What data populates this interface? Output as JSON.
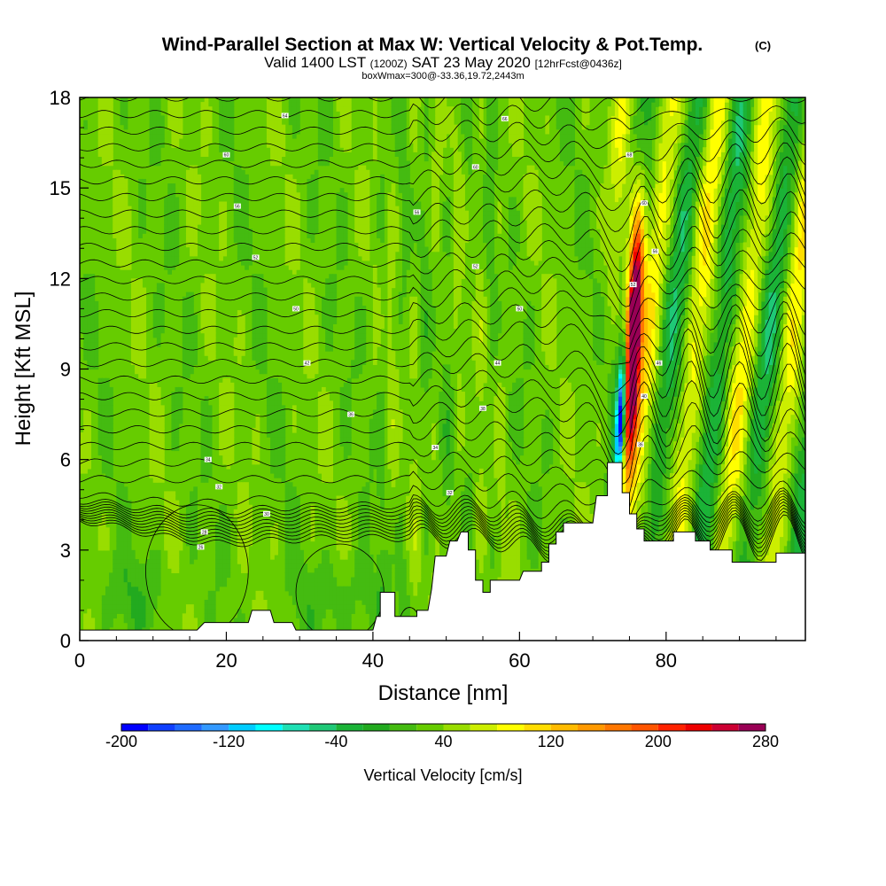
{
  "chart_data": {
    "type": "heatmap",
    "title": "Wind-Parallel Section at Max W: Vertical Velocity & Pot.Temp.",
    "title_mark": "(C)",
    "subtitle": {
      "prefix": "Valid 1400 LST",
      "zulu": "(1200Z)",
      "date": "SAT 23 May 2020",
      "forecast": "[12hrFcst@0436z]"
    },
    "box_label": "boxWmax=300@-33.36,19.72,2443m",
    "xlabel": "Distance [nm]",
    "ylabel": "Height [Kft MSL]",
    "xlim": [
      0,
      99
    ],
    "ylim": [
      0,
      18
    ],
    "x_ticks": [
      "0",
      "20",
      "40",
      "60",
      "80"
    ],
    "x_tick_values": [
      0,
      20,
      40,
      60,
      80
    ],
    "y_ticks": [
      "0",
      "3",
      "6",
      "9",
      "12",
      "15",
      "18"
    ],
    "y_tick_values": [
      0,
      3,
      6,
      9,
      12,
      15,
      18
    ],
    "colorbar": {
      "label": "Vertical Velocity [cm/s]",
      "min": -200,
      "max": 280,
      "step": 20,
      "tick_labels": [
        "-200",
        "-120",
        "-40",
        "40",
        "120",
        "200",
        "280"
      ],
      "tick_values": [
        -200,
        -120,
        -40,
        40,
        120,
        200,
        280
      ],
      "colors": [
        "#0000ff",
        "#0f3fff",
        "#1f6bff",
        "#3399ff",
        "#00ccff",
        "#00ffff",
        "#1fe0b4",
        "#1fc877",
        "#1bb337",
        "#22aa1f",
        "#44bb11",
        "#66cc00",
        "#99dd00",
        "#ccee00",
        "#ffff00",
        "#ffdd00",
        "#ffbb00",
        "#ff9900",
        "#ff7700",
        "#ff5500",
        "#ff2200",
        "#ee0000",
        "#cc0033",
        "#990055"
      ]
    },
    "terrain_kft": [
      [
        0,
        0.35
      ],
      [
        16,
        0.35
      ],
      [
        17,
        0.6
      ],
      [
        23,
        0.6
      ],
      [
        23.5,
        1.0
      ],
      [
        26,
        1.0
      ],
      [
        26.5,
        0.6
      ],
      [
        29,
        0.6
      ],
      [
        29.5,
        0.35
      ],
      [
        40,
        0.35
      ],
      [
        40.5,
        0.8
      ],
      [
        41,
        0.8
      ],
      [
        41,
        1.6
      ],
      [
        43,
        1.6
      ],
      [
        43,
        0.8
      ],
      [
        46,
        0.8
      ],
      [
        46,
        1.0
      ],
      [
        47.5,
        1.0
      ],
      [
        48,
        1.7
      ],
      [
        48.5,
        2.8
      ],
      [
        50,
        2.8
      ],
      [
        50.5,
        3.3
      ],
      [
        51.5,
        3.3
      ],
      [
        52,
        3.6
      ],
      [
        53,
        3.6
      ],
      [
        53,
        3.0
      ],
      [
        54,
        3.0
      ],
      [
        54,
        2.0
      ],
      [
        55,
        2.0
      ],
      [
        55,
        1.6
      ],
      [
        56,
        1.6
      ],
      [
        56,
        2.0
      ],
      [
        60,
        2.0
      ],
      [
        60.5,
        2.3
      ],
      [
        63,
        2.3
      ],
      [
        63,
        2.6
      ],
      [
        64,
        2.6
      ],
      [
        64,
        3.2
      ],
      [
        65,
        3.2
      ],
      [
        65,
        3.6
      ],
      [
        66,
        3.6
      ],
      [
        66,
        3.9
      ],
      [
        70,
        3.9
      ],
      [
        70.5,
        4.8
      ],
      [
        72,
        4.8
      ],
      [
        72,
        5.9
      ],
      [
        74,
        5.9
      ],
      [
        74,
        4.9
      ],
      [
        75,
        4.9
      ],
      [
        75,
        4.2
      ],
      [
        76,
        4.2
      ],
      [
        76,
        3.7
      ],
      [
        77,
        3.7
      ],
      [
        77,
        3.3
      ],
      [
        81,
        3.3
      ],
      [
        81,
        3.6
      ],
      [
        84,
        3.6
      ],
      [
        84,
        3.3
      ],
      [
        86,
        3.3
      ],
      [
        86,
        3.0
      ],
      [
        89,
        3.0
      ],
      [
        89,
        2.6
      ],
      [
        95,
        2.6
      ],
      [
        95,
        2.9
      ],
      [
        99,
        2.9
      ]
    ],
    "theta_labels": [
      {
        "text": "64",
        "x": 28,
        "y": 17.4
      },
      {
        "text": "60",
        "x": 20,
        "y": 16.1
      },
      {
        "text": "56",
        "x": 21.5,
        "y": 14.4
      },
      {
        "text": "52",
        "x": 24,
        "y": 12.7
      },
      {
        "text": "50",
        "x": 29.5,
        "y": 11.0
      },
      {
        "text": "42",
        "x": 31,
        "y": 9.2
      },
      {
        "text": "36",
        "x": 37,
        "y": 7.5
      },
      {
        "text": "34",
        "x": 17.5,
        "y": 6.0
      },
      {
        "text": "32",
        "x": 19,
        "y": 5.1
      },
      {
        "text": "30",
        "x": 25.5,
        "y": 4.2
      },
      {
        "text": "28",
        "x": 17,
        "y": 3.6
      },
      {
        "text": "26",
        "x": 16.5,
        "y": 3.1
      },
      {
        "text": "66",
        "x": 58,
        "y": 17.3
      },
      {
        "text": "60",
        "x": 54,
        "y": 15.7
      },
      {
        "text": "56",
        "x": 46,
        "y": 14.2
      },
      {
        "text": "52",
        "x": 54,
        "y": 12.4
      },
      {
        "text": "50",
        "x": 60,
        "y": 11.0
      },
      {
        "text": "44",
        "x": 57,
        "y": 9.2
      },
      {
        "text": "38",
        "x": 55,
        "y": 7.7
      },
      {
        "text": "34",
        "x": 48.5,
        "y": 6.4
      },
      {
        "text": "32",
        "x": 50.5,
        "y": 4.9
      },
      {
        "text": "68",
        "x": 75,
        "y": 16.1
      },
      {
        "text": "60",
        "x": 77,
        "y": 14.5
      },
      {
        "text": "56",
        "x": 78.5,
        "y": 12.9
      },
      {
        "text": "52",
        "x": 75.5,
        "y": 11.8
      },
      {
        "text": "46",
        "x": 79,
        "y": 9.2
      },
      {
        "text": "40",
        "x": 77,
        "y": 8.1
      },
      {
        "text": "36",
        "x": 76.5,
        "y": 6.5
      }
    ]
  }
}
